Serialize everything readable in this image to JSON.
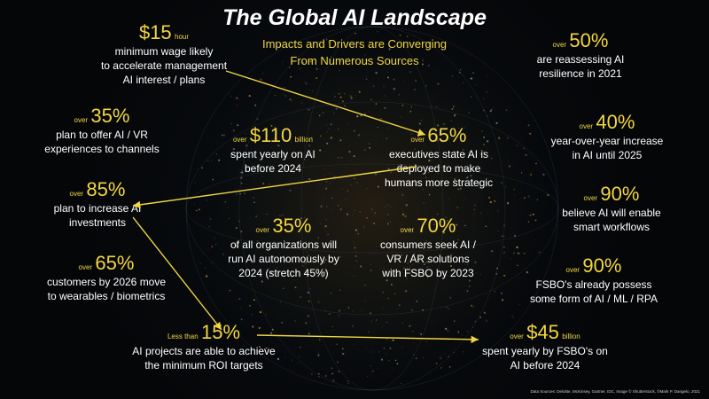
{
  "title": "The Global AI Landscape",
  "subtitle_line1": "Impacts and Drivers are Converging",
  "subtitle_line2": "From Numerous Sources",
  "accent_color": "#f2d640",
  "stats": [
    {
      "id": "min-wage",
      "prefix": "",
      "value": "$15",
      "suffix": "hour",
      "lines": [
        "minimum wage likely",
        "to accelerate management",
        "AI interest / plans"
      ]
    },
    {
      "id": "vr-experiences",
      "prefix": "over",
      "value": "35%",
      "suffix": "",
      "lines": [
        "plan to offer AI / VR",
        "experiences to channels"
      ]
    },
    {
      "id": "increase-investments",
      "prefix": "over",
      "value": "85%",
      "suffix": "",
      "lines": [
        "plan to increase AI",
        "investments"
      ]
    },
    {
      "id": "wearables",
      "prefix": "over",
      "value": "65%",
      "suffix": "",
      "lines": [
        "customers by 2026 move",
        "to wearables / biometrics"
      ]
    },
    {
      "id": "roi-targets",
      "prefix": "Less than",
      "value": "15%",
      "suffix": "",
      "lines": [
        "AI projects are able to achieve",
        "the minimum ROI targets"
      ]
    },
    {
      "id": "spent-yearly",
      "prefix": "over",
      "value": "$110",
      "suffix": "billion",
      "lines": [
        "spent yearly on AI",
        "before 2024"
      ]
    },
    {
      "id": "executives",
      "prefix": "over",
      "value": "65%",
      "suffix": "",
      "lines": [
        "executives state AI is",
        "deployed to make",
        "humans more strategic"
      ]
    },
    {
      "id": "autonomous",
      "prefix": "over",
      "value": "35%",
      "suffix": "",
      "lines": [
        "of all organizations will",
        "run AI autonomously by",
        "2024 (stretch 45%)"
      ]
    },
    {
      "id": "consumers",
      "prefix": "over",
      "value": "70%",
      "suffix": "",
      "lines": [
        "consumers seek AI /",
        "VR / AR solutions",
        "with FSBO by 2023"
      ]
    },
    {
      "id": "resilience",
      "prefix": "over",
      "value": "50%",
      "suffix": "",
      "lines": [
        "are reassessing AI",
        "resilience in 2021"
      ]
    },
    {
      "id": "yoy-increase",
      "prefix": "over",
      "value": "40%",
      "suffix": "",
      "lines": [
        "year-over-year increase",
        "in AI until 2025"
      ]
    },
    {
      "id": "smart-workflows",
      "prefix": "over",
      "value": "90%",
      "suffix": "",
      "lines": [
        "believe AI will enable",
        "smart workflows"
      ]
    },
    {
      "id": "fsbo-possess",
      "prefix": "over",
      "value": "90%",
      "suffix": "",
      "lines": [
        "FSBO's already possess",
        "some form of AI / ML / RPA"
      ]
    },
    {
      "id": "fsbo-spent",
      "prefix": "over",
      "value": "$45",
      "suffix": "billion",
      "lines": [
        "spent yearly by FSBO's on",
        "AI before 2024"
      ]
    }
  ],
  "footnote": "Data Sources: Deloitte,   McKinsey,  Gartner,  IDC,  Image © Shutterstock,  ©Mark P. Dangelo, 2021"
}
